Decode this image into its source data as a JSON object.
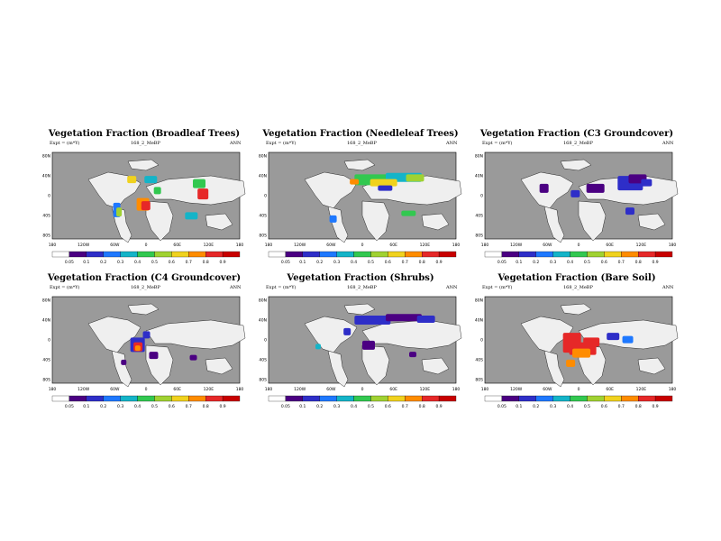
{
  "colors": {
    "ocean": "#9a9a9a",
    "land_zero": "#efefef",
    "scale": [
      "#ffffff",
      "#4b0082",
      "#2e2ec8",
      "#1e78ff",
      "#14b4c8",
      "#32c850",
      "#a0d232",
      "#f0d21e",
      "#ff8c00",
      "#e62828",
      "#c80000"
    ]
  },
  "common": {
    "units_label": "Expt = (m*Y)",
    "case_label": "168_2_MeBP",
    "season_label": "ANN",
    "lon_ticks": [
      "180",
      "120W",
      "60W",
      "0",
      "60E",
      "120E",
      "180"
    ],
    "lat_ticks": [
      "80N",
      "40N",
      "0",
      "40S",
      "80S"
    ]
  },
  "chart_data": [
    {
      "type": "heatmap",
      "title": "Vegetation Fraction (Broadleaf Trees)",
      "levels": [
        "0.05",
        "0.1",
        "0.2",
        "0.3",
        "0.4",
        "0.5",
        "0.6",
        "0.7",
        "0.8",
        "0.9"
      ]
    },
    {
      "type": "heatmap",
      "title": "Vegetation Fraction (Needleleaf Trees)",
      "levels": [
        "0.05",
        "0.1",
        "0.2",
        "0.3",
        "0.4",
        "0.5",
        "0.6",
        "0.7",
        "0.8",
        "0.9"
      ]
    },
    {
      "type": "heatmap",
      "title": "Vegetation Fraction (C3 Groundcover)",
      "levels": [
        "0.05",
        "0.1",
        "0.2",
        "0.3",
        "0.4",
        "0.5",
        "0.6",
        "0.7",
        "0.8",
        "0.9"
      ]
    },
    {
      "type": "heatmap",
      "title": "Vegetation Fraction (C4 Groundcover)",
      "levels": [
        "0.05",
        "0.1",
        "0.2",
        "0.3",
        "0.4",
        "0.5",
        "0.6",
        "0.7",
        "0.8",
        "0.9"
      ]
    },
    {
      "type": "heatmap",
      "title": "Vegetation Fraction (Shrubs)",
      "levels": [
        "0.05",
        "0.1",
        "0.2",
        "0.3",
        "0.4",
        "0.5",
        "0.6",
        "0.7",
        "0.8",
        "0.9"
      ]
    },
    {
      "type": "heatmap",
      "title": "Vegetation Fraction (Bare Soil)",
      "levels": [
        "0.05",
        "0.1",
        "0.2",
        "0.3",
        "0.4",
        "0.5",
        "0.6",
        "0.7",
        "0.8",
        "0.9"
      ]
    }
  ]
}
